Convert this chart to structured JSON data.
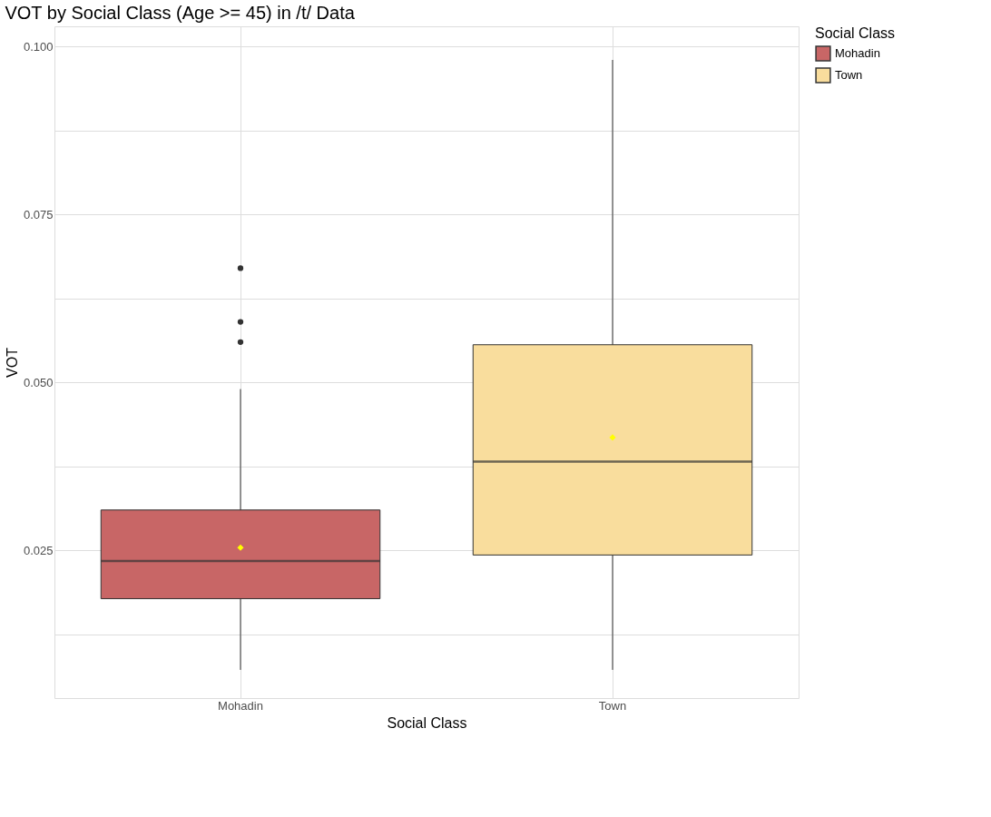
{
  "chart_data": {
    "type": "box",
    "title": "VOT by Social Class (Age >= 45) in /t/ Data",
    "xlabel": "Social Class",
    "ylabel": "VOT",
    "legend_title": "Social Class",
    "categories": [
      "Mohadin",
      "Town"
    ],
    "series": [
      {
        "name": "Mohadin",
        "color": "#c86666",
        "boxes": [
          {
            "low": 0.0072,
            "q1": 0.0178,
            "median": 0.0234,
            "q3": 0.031,
            "high": 0.049,
            "mean": 0.0254,
            "outliers": [
              0.067,
              0.059,
              0.056
            ]
          },
          null
        ]
      },
      {
        "name": "Town",
        "color": "#f9dd9d",
        "boxes": [
          null,
          {
            "low": 0.0072,
            "q1": 0.0243,
            "median": 0.0382,
            "q3": 0.0556,
            "high": 0.098,
            "mean": 0.0418
          }
        ]
      }
    ],
    "ylim": [
      0.003,
      0.103
    ],
    "yticks": [
      {
        "value": 0.0125,
        "label": null
      },
      {
        "value": 0.025,
        "label": "0.025"
      },
      {
        "value": 0.0375,
        "label": null
      },
      {
        "value": 0.05,
        "label": "0.050"
      },
      {
        "value": 0.0625,
        "label": null
      },
      {
        "value": 0.075,
        "label": "0.075"
      },
      {
        "value": 0.0875,
        "label": null
      },
      {
        "value": 0.1,
        "label": "0.100"
      }
    ],
    "grid": true,
    "legend": "right",
    "marker": "diamond"
  }
}
